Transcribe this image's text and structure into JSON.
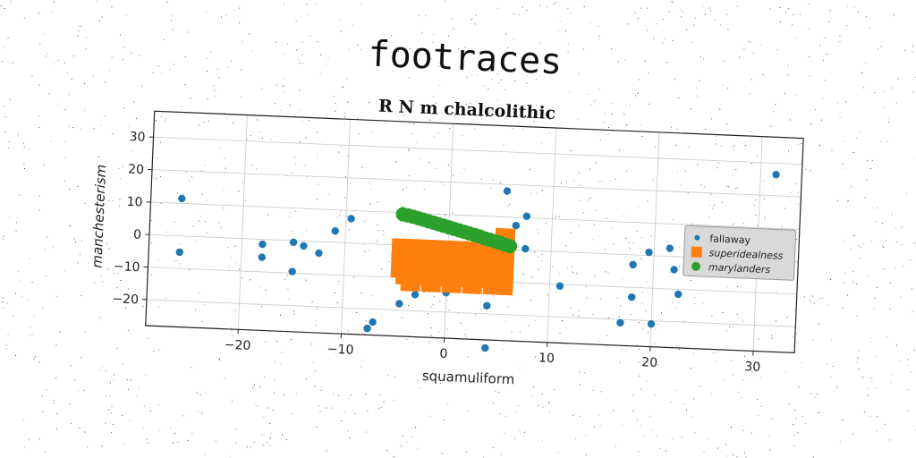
{
  "title": "footraces",
  "chart_data": {
    "type": "scatter",
    "title": "R N m chalcolithic",
    "xlabel": "squamuliform",
    "ylabel": "manchesterism",
    "xlim": [
      -29,
      34
    ],
    "ylim": [
      -28,
      38
    ],
    "xticks": [
      -20,
      -10,
      0,
      10,
      20,
      30
    ],
    "yticks": [
      -20,
      -10,
      0,
      10,
      20,
      30
    ],
    "grid": true,
    "legend_position": "right",
    "series": [
      {
        "name": "fallaway",
        "color": "#1f77b4",
        "marker": "circle",
        "points": [
          [
            -26,
            11.5
          ],
          [
            -26,
            -5
          ],
          [
            -18,
            -1.5
          ],
          [
            -18,
            -5.5
          ],
          [
            -15,
            -0.5
          ],
          [
            -15,
            -9.5
          ],
          [
            -14,
            -1.5
          ],
          [
            -12.5,
            -3.5
          ],
          [
            -11,
            3.5
          ],
          [
            -9.5,
            7.5
          ],
          [
            -7.5,
            -26
          ],
          [
            -7,
            -24
          ],
          [
            -4.5,
            -18
          ],
          [
            -3,
            -15
          ],
          [
            0,
            -14
          ],
          [
            3.5,
            3.5
          ],
          [
            4,
            -17.5
          ],
          [
            4,
            -30.5
          ],
          [
            5.5,
            18
          ],
          [
            5.5,
            3.5
          ],
          [
            6,
            -10
          ],
          [
            6.5,
            7.5
          ],
          [
            7.5,
            0.5
          ],
          [
            7.5,
            10.5
          ],
          [
            11,
            -10.5
          ],
          [
            17,
            -21
          ],
          [
            18,
            -3
          ],
          [
            18,
            -13
          ],
          [
            19.5,
            1
          ],
          [
            20,
            -21
          ],
          [
            21.5,
            2.5
          ],
          [
            22,
            -4
          ],
          [
            22.5,
            -11.5
          ],
          [
            31.5,
            26.5
          ]
        ]
      },
      {
        "name": "superidealness",
        "color": "#ff7f0e",
        "marker": "square",
        "points": [
          [
            -4.5,
            -1
          ],
          [
            -4.5,
            -7
          ],
          [
            -3.5,
            -1
          ],
          [
            -3.5,
            -7
          ],
          [
            -2.5,
            -1
          ],
          [
            -2.5,
            -7
          ],
          [
            -1.5,
            -1
          ],
          [
            -1.5,
            -7
          ],
          [
            -0.5,
            -1
          ],
          [
            -0.5,
            -7
          ],
          [
            0.5,
            -1
          ],
          [
            0.5,
            -7
          ],
          [
            1.5,
            -1
          ],
          [
            1.5,
            -7
          ],
          [
            2.5,
            -1
          ],
          [
            2.5,
            -7
          ],
          [
            3.5,
            -1
          ],
          [
            3.5,
            -7
          ],
          [
            4.5,
            -1
          ],
          [
            4.5,
            -7
          ],
          [
            5.5,
            -1
          ],
          [
            5.5,
            -7
          ],
          [
            -4,
            -3
          ],
          [
            -4,
            -9
          ],
          [
            -3,
            -3
          ],
          [
            -3,
            -9
          ],
          [
            -2,
            -3
          ],
          [
            -2,
            -9
          ],
          [
            -1,
            -3
          ],
          [
            -1,
            -9
          ],
          [
            0,
            -3
          ],
          [
            0,
            -9
          ],
          [
            1,
            -3
          ],
          [
            1,
            -9
          ],
          [
            2,
            -3
          ],
          [
            2,
            -9
          ],
          [
            3,
            -3
          ],
          [
            3,
            -9
          ],
          [
            4,
            -3
          ],
          [
            4,
            -9
          ],
          [
            5,
            -3
          ],
          [
            5,
            -9
          ],
          [
            -3.5,
            -5
          ],
          [
            -1.5,
            -5
          ],
          [
            0.5,
            -5
          ],
          [
            2.5,
            -5
          ],
          [
            4.5,
            -5
          ],
          [
            -3.5,
            -11
          ],
          [
            -1.5,
            -11
          ],
          [
            0.5,
            -11
          ],
          [
            2.5,
            -11
          ],
          [
            4.5,
            -11
          ],
          [
            5.5,
            3.5
          ],
          [
            5.5,
            1
          ],
          [
            5.5,
            -3
          ],
          [
            5.5,
            -11
          ]
        ]
      },
      {
        "name": "marylanders",
        "color": "#2ca02c",
        "marker": "circle",
        "points": [
          [
            -4.5,
            9.5
          ],
          [
            -4,
            9.2
          ],
          [
            -3.5,
            8.9
          ],
          [
            -3,
            8.5
          ],
          [
            -2.5,
            8.1
          ],
          [
            -2,
            7.7
          ],
          [
            -1.5,
            7.3
          ],
          [
            -1,
            6.9
          ],
          [
            -0.5,
            6.5
          ],
          [
            0,
            6.1
          ],
          [
            0.5,
            5.7
          ],
          [
            1,
            5.3
          ],
          [
            1.5,
            4.9
          ],
          [
            2,
            4.5
          ],
          [
            2.5,
            4.1
          ],
          [
            3,
            3.7
          ],
          [
            3.5,
            3.2
          ],
          [
            4,
            2.8
          ],
          [
            4.5,
            2.4
          ],
          [
            5,
            2.0
          ],
          [
            5.5,
            1.5
          ],
          [
            6,
            1.1
          ]
        ]
      }
    ]
  }
}
